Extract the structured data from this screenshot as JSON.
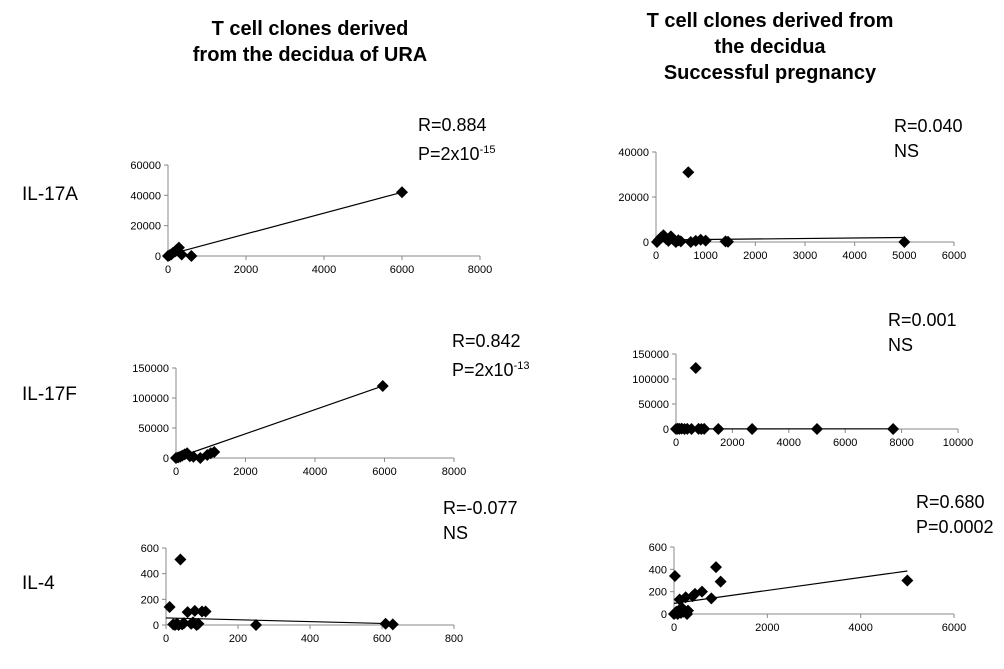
{
  "titles": {
    "left": [
      "T cell clones derived",
      "from the decidua of URA"
    ],
    "right": [
      "T cell clones derived from",
      "the  decidua",
      "Successful pregnancy"
    ]
  },
  "row_labels": [
    "IL-17A",
    "IL-17F",
    "IL-4"
  ],
  "stats": [
    {
      "r": "R=0.884",
      "p_prefix": "P=2x10",
      "p_exp": "-15",
      "ns": ""
    },
    {
      "r": "R=0.040",
      "p_prefix": "",
      "p_exp": "",
      "ns": "NS"
    },
    {
      "r": "R=0.842",
      "p_prefix": "P=2x10",
      "p_exp": "-13",
      "ns": ""
    },
    {
      "r": "R=0.001",
      "p_prefix": "",
      "p_exp": "",
      "ns": "NS"
    },
    {
      "r": "R=-0.077",
      "p_prefix": "",
      "p_exp": "",
      "ns": "NS"
    },
    {
      "r": "R=0.680",
      "p_prefix": "P=0.0002",
      "p_exp": "",
      "ns": ""
    }
  ],
  "chart_data": [
    {
      "type": "scatter",
      "xlim": [
        0,
        8000
      ],
      "ylim": [
        0,
        60000
      ],
      "xticks": [
        0,
        2000,
        4000,
        6000,
        8000
      ],
      "yticks": [
        0,
        20000,
        40000,
        60000
      ],
      "points": [
        [
          0,
          0
        ],
        [
          40,
          500
        ],
        [
          80,
          1000
        ],
        [
          120,
          2000
        ],
        [
          180,
          3000
        ],
        [
          220,
          4000
        ],
        [
          280,
          5500
        ],
        [
          350,
          1000
        ],
        [
          600,
          0
        ],
        [
          6000,
          42000
        ]
      ],
      "trendline": [
        [
          0,
          800
        ],
        [
          6000,
          42000
        ]
      ],
      "color": "#000000"
    },
    {
      "type": "scatter",
      "xlim": [
        0,
        6000
      ],
      "ylim": [
        0,
        40000
      ],
      "xticks": [
        0,
        1000,
        2000,
        3000,
        4000,
        5000,
        6000
      ],
      "yticks": [
        0,
        20000,
        40000
      ],
      "points": [
        [
          20,
          0
        ],
        [
          60,
          1000
        ],
        [
          100,
          2000
        ],
        [
          150,
          3000
        ],
        [
          200,
          1500
        ],
        [
          250,
          500
        ],
        [
          300,
          2500
        ],
        [
          350,
          1000
        ],
        [
          400,
          0
        ],
        [
          450,
          800
        ],
        [
          500,
          300
        ],
        [
          650,
          31000
        ],
        [
          700,
          0
        ],
        [
          800,
          500
        ],
        [
          900,
          1000
        ],
        [
          1000,
          600
        ],
        [
          1400,
          300
        ],
        [
          1450,
          100
        ],
        [
          5000,
          0
        ]
      ],
      "trendline": [
        [
          0,
          900
        ],
        [
          5000,
          2000
        ]
      ],
      "color": "#000000"
    },
    {
      "type": "scatter",
      "xlim": [
        0,
        8000
      ],
      "ylim": [
        0,
        150000
      ],
      "xticks": [
        0,
        2000,
        4000,
        6000,
        8000
      ],
      "yticks": [
        0,
        50000,
        100000,
        150000
      ],
      "points": [
        [
          0,
          0
        ],
        [
          60,
          1000
        ],
        [
          120,
          2000
        ],
        [
          180,
          4000
        ],
        [
          250,
          6000
        ],
        [
          320,
          8000
        ],
        [
          400,
          3000
        ],
        [
          500,
          2000
        ],
        [
          700,
          0
        ],
        [
          900,
          5000
        ],
        [
          1000,
          8000
        ],
        [
          1100,
          10000
        ],
        [
          5950,
          120000
        ]
      ],
      "trendline": [
        [
          0,
          0
        ],
        [
          5950,
          120000
        ]
      ],
      "color": "#000000"
    },
    {
      "type": "scatter",
      "xlim": [
        0,
        10000
      ],
      "ylim": [
        0,
        150000
      ],
      "xticks": [
        0,
        2000,
        4000,
        6000,
        8000,
        10000
      ],
      "yticks": [
        0,
        50000,
        100000,
        150000
      ],
      "points": [
        [
          0,
          0
        ],
        [
          60,
          500
        ],
        [
          120,
          200
        ],
        [
          200,
          800
        ],
        [
          300,
          0
        ],
        [
          400,
          300
        ],
        [
          550,
          100
        ],
        [
          700,
          122000
        ],
        [
          800,
          200
        ],
        [
          900,
          0
        ],
        [
          1000,
          300
        ],
        [
          1500,
          0
        ],
        [
          2700,
          0
        ],
        [
          5000,
          0
        ],
        [
          7700,
          0
        ]
      ],
      "trendline": [
        [
          0,
          200
        ],
        [
          7700,
          400
        ]
      ],
      "color": "#000000"
    },
    {
      "type": "scatter",
      "xlim": [
        0,
        800
      ],
      "ylim": [
        0,
        600
      ],
      "xticks": [
        0,
        200,
        400,
        600,
        800
      ],
      "yticks": [
        0,
        200,
        400,
        600
      ],
      "points": [
        [
          10,
          140
        ],
        [
          20,
          5
        ],
        [
          25,
          0
        ],
        [
          30,
          10
        ],
        [
          35,
          0
        ],
        [
          40,
          510
        ],
        [
          45,
          5
        ],
        [
          50,
          15
        ],
        [
          60,
          100
        ],
        [
          70,
          10
        ],
        [
          75,
          20
        ],
        [
          80,
          110
        ],
        [
          85,
          0
        ],
        [
          90,
          10
        ],
        [
          100,
          105
        ],
        [
          110,
          105
        ],
        [
          250,
          0
        ],
        [
          610,
          10
        ],
        [
          630,
          5
        ]
      ],
      "trendline": [
        [
          0,
          55
        ],
        [
          630,
          10
        ]
      ],
      "color": "#000000"
    },
    {
      "type": "scatter",
      "xlim": [
        0,
        6000
      ],
      "ylim": [
        0,
        600
      ],
      "xticks": [
        0,
        2000,
        4000,
        6000
      ],
      "yticks": [
        0,
        200,
        400,
        600
      ],
      "points": [
        [
          0,
          0
        ],
        [
          20,
          340
        ],
        [
          30,
          10
        ],
        [
          50,
          20
        ],
        [
          80,
          0
        ],
        [
          100,
          30
        ],
        [
          120,
          130
        ],
        [
          150,
          10
        ],
        [
          180,
          50
        ],
        [
          200,
          20
        ],
        [
          250,
          150
        ],
        [
          280,
          0
        ],
        [
          300,
          30
        ],
        [
          400,
          160
        ],
        [
          450,
          180
        ],
        [
          600,
          200
        ],
        [
          800,
          140
        ],
        [
          900,
          420
        ],
        [
          1000,
          290
        ],
        [
          5000,
          300
        ]
      ],
      "trendline": [
        [
          0,
          95
        ],
        [
          5000,
          385
        ]
      ],
      "color": "#000000"
    }
  ]
}
